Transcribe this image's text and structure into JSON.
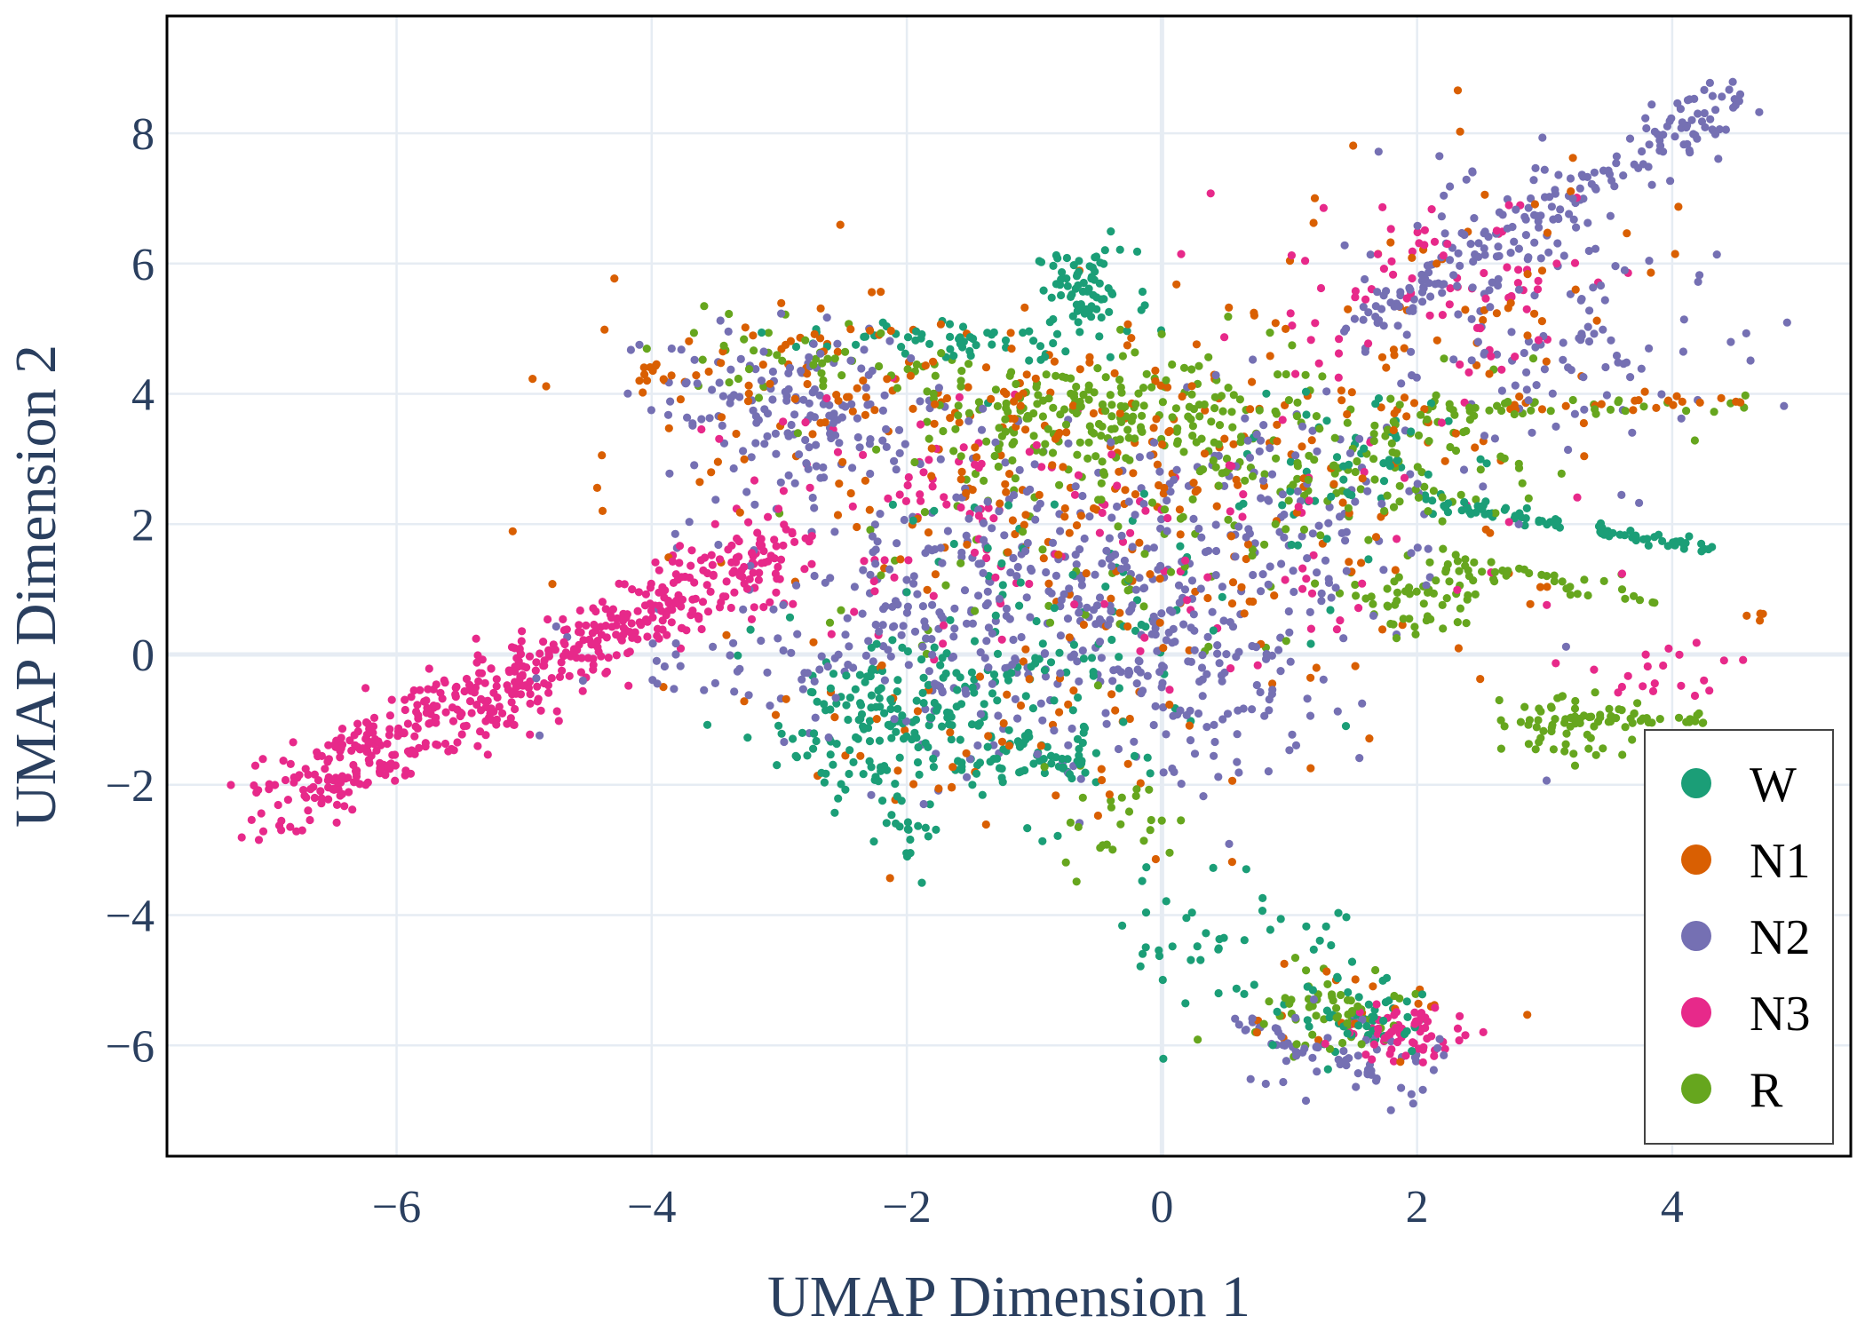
{
  "chart_data": {
    "type": "scatter",
    "title": "",
    "xlabel": "UMAP Dimension 1",
    "ylabel": "UMAP Dimension 2",
    "xlim": [
      -7.8,
      5.4
    ],
    "ylim": [
      -7.7,
      9.8
    ],
    "xticks": [
      -6,
      -4,
      -2,
      0,
      2,
      4
    ],
    "yticks": [
      -6,
      -4,
      -2,
      0,
      2,
      4,
      6,
      8
    ],
    "xtick_labels": [
      "−6",
      "−4",
      "−2",
      "0",
      "2",
      "4"
    ],
    "ytick_labels": [
      "−6",
      "−4",
      "−2",
      "0",
      "2",
      "4",
      "6",
      "8"
    ],
    "grid": true,
    "zero_lines": true,
    "legend_position": "bottom-right",
    "series": [
      {
        "name": "W",
        "color": "#1b9e77",
        "clusters": [
          {
            "cx": -0.6,
            "cy": 5.6,
            "sx": 0.2,
            "sy": 0.3,
            "n": 70
          },
          {
            "cx": -1.6,
            "cy": 4.8,
            "sx": 0.6,
            "sy": 0.15,
            "n": 60
          },
          {
            "cx": -2.1,
            "cy": -1.0,
            "sx": 0.45,
            "sy": 0.6,
            "n": 170
          },
          {
            "cx": -1.0,
            "cy": -1.6,
            "sx": 0.35,
            "sy": 0.2,
            "n": 60
          },
          {
            "cx": -1.0,
            "cy": 0.3,
            "sx": 0.9,
            "sy": 1.2,
            "n": 110
          },
          {
            "cx": 1.5,
            "cy": 2.9,
            "sx": 0.4,
            "sy": 0.5,
            "n": 50
          },
          {
            "cx": 0.6,
            "cy": -4.4,
            "sx": 0.5,
            "sy": 0.6,
            "n": 45
          },
          {
            "cx": 1.6,
            "cy": -5.6,
            "sx": 0.3,
            "sy": 0.3,
            "n": 50
          },
          {
            "cx": -2.0,
            "cy": -2.8,
            "sx": 0.15,
            "sy": 0.3,
            "n": 20
          }
        ],
        "lines": [
          {
            "x1": 2.0,
            "y1": 2.4,
            "x2": 4.3,
            "y2": 1.6,
            "n": 80,
            "s": 0.07
          }
        ]
      },
      {
        "name": "N1",
        "color": "#d95f02",
        "clusters": [
          {
            "cx": -0.5,
            "cy": 3.2,
            "sx": 1.8,
            "sy": 1.2,
            "n": 240
          },
          {
            "cx": -2.5,
            "cy": 4.2,
            "sx": 0.9,
            "sy": 0.5,
            "n": 60
          },
          {
            "cx": 2.5,
            "cy": 5.5,
            "sx": 1.0,
            "sy": 1.2,
            "n": 50
          },
          {
            "cx": -1.5,
            "cy": -1.2,
            "sx": 0.8,
            "sy": 0.8,
            "n": 50
          },
          {
            "cx": 1.5,
            "cy": -5.5,
            "sx": 0.5,
            "sy": 0.4,
            "n": 20
          },
          {
            "cx": -4.0,
            "cy": 4.4,
            "sx": 0.1,
            "sy": 0.1,
            "n": 8
          },
          {
            "cx": 4.65,
            "cy": 0.6,
            "sx": 0.04,
            "sy": 0.04,
            "n": 4
          },
          {
            "cx": 0.5,
            "cy": 0.5,
            "sx": 1.2,
            "sy": 1.5,
            "n": 60
          }
        ],
        "lines": [
          {
            "x1": 1.5,
            "y1": 3.7,
            "x2": 4.6,
            "y2": 3.9,
            "n": 25,
            "s": 0.08
          }
        ]
      },
      {
        "name": "N2",
        "color": "#7570b3",
        "clusters": [
          {
            "cx": -0.8,
            "cy": 0.8,
            "sx": 1.2,
            "sy": 1.2,
            "n": 480
          },
          {
            "cx": -2.8,
            "cy": 3.8,
            "sx": 0.6,
            "sy": 0.6,
            "n": 150
          },
          {
            "cx": 3.0,
            "cy": 5.2,
            "sx": 0.7,
            "sy": 1.2,
            "n": 140
          },
          {
            "cx": 0.4,
            "cy": -0.5,
            "sx": 0.4,
            "sy": 0.8,
            "n": 50
          },
          {
            "cx": -3.0,
            "cy": 0.0,
            "sx": 0.8,
            "sy": 0.4,
            "n": 50
          },
          {
            "cx": 1.5,
            "cy": -6.2,
            "sx": 0.4,
            "sy": 0.3,
            "n": 45
          },
          {
            "cx": 1.0,
            "cy": 2.5,
            "sx": 0.8,
            "sy": 0.8,
            "n": 80
          }
        ],
        "lines": [
          {
            "x1": 1.5,
            "y1": 5.0,
            "x2": 4.5,
            "y2": 8.6,
            "n": 180,
            "s": 0.22
          },
          {
            "x1": 0.6,
            "y1": -5.6,
            "x2": 1.7,
            "y2": -6.5,
            "n": 30,
            "s": 0.08
          }
        ]
      },
      {
        "name": "N3",
        "color": "#e7298a",
        "clusters": [
          {
            "cx": -1.8,
            "cy": 2.0,
            "sx": 0.8,
            "sy": 1.0,
            "n": 90
          },
          {
            "cx": 2.2,
            "cy": 5.5,
            "sx": 0.8,
            "sy": 0.8,
            "n": 80
          },
          {
            "cx": 1.9,
            "cy": -5.8,
            "sx": 0.25,
            "sy": 0.2,
            "n": 70
          },
          {
            "cx": 0.8,
            "cy": 1.8,
            "sx": 1.0,
            "sy": 1.0,
            "n": 60
          },
          {
            "cx": 3.8,
            "cy": -0.3,
            "sx": 0.4,
            "sy": 0.3,
            "n": 20
          }
        ],
        "lines": [
          {
            "x1": -7.0,
            "y1": -2.3,
            "x2": -3.0,
            "y2": 1.6,
            "n": 560,
            "s": 0.3
          }
        ]
      },
      {
        "name": "R",
        "color": "#66a61e",
        "clusters": [
          {
            "cx": -0.4,
            "cy": 3.7,
            "sx": 0.9,
            "sy": 0.5,
            "n": 230
          },
          {
            "cx": 1.5,
            "cy": 2.8,
            "sx": 0.7,
            "sy": 0.6,
            "n": 120
          },
          {
            "cx": 3.2,
            "cy": -1.0,
            "sx": 0.3,
            "sy": 0.25,
            "n": 60
          },
          {
            "cx": 2.0,
            "cy": 0.8,
            "sx": 0.3,
            "sy": 0.3,
            "n": 50
          },
          {
            "cx": 1.3,
            "cy": -5.4,
            "sx": 0.3,
            "sy": 0.3,
            "n": 60
          },
          {
            "cx": -0.3,
            "cy": -2.5,
            "sx": 0.3,
            "sy": 0.4,
            "n": 25
          },
          {
            "cx": -1.0,
            "cy": 1.5,
            "sx": 1.0,
            "sy": 1.0,
            "n": 70
          },
          {
            "cx": -2.7,
            "cy": 4.4,
            "sx": 0.6,
            "sy": 0.4,
            "n": 40
          }
        ],
        "lines": [
          {
            "x1": 1.5,
            "y1": 3.7,
            "x2": 4.6,
            "y2": 3.9,
            "n": 40,
            "s": 0.08
          },
          {
            "x1": 2.2,
            "y1": 1.4,
            "x2": 4.0,
            "y2": 0.8,
            "n": 40,
            "s": 0.1
          },
          {
            "x1": 3.2,
            "y1": -1.0,
            "x2": 4.3,
            "y2": -1.0,
            "n": 30,
            "s": 0.06
          }
        ]
      }
    ]
  }
}
